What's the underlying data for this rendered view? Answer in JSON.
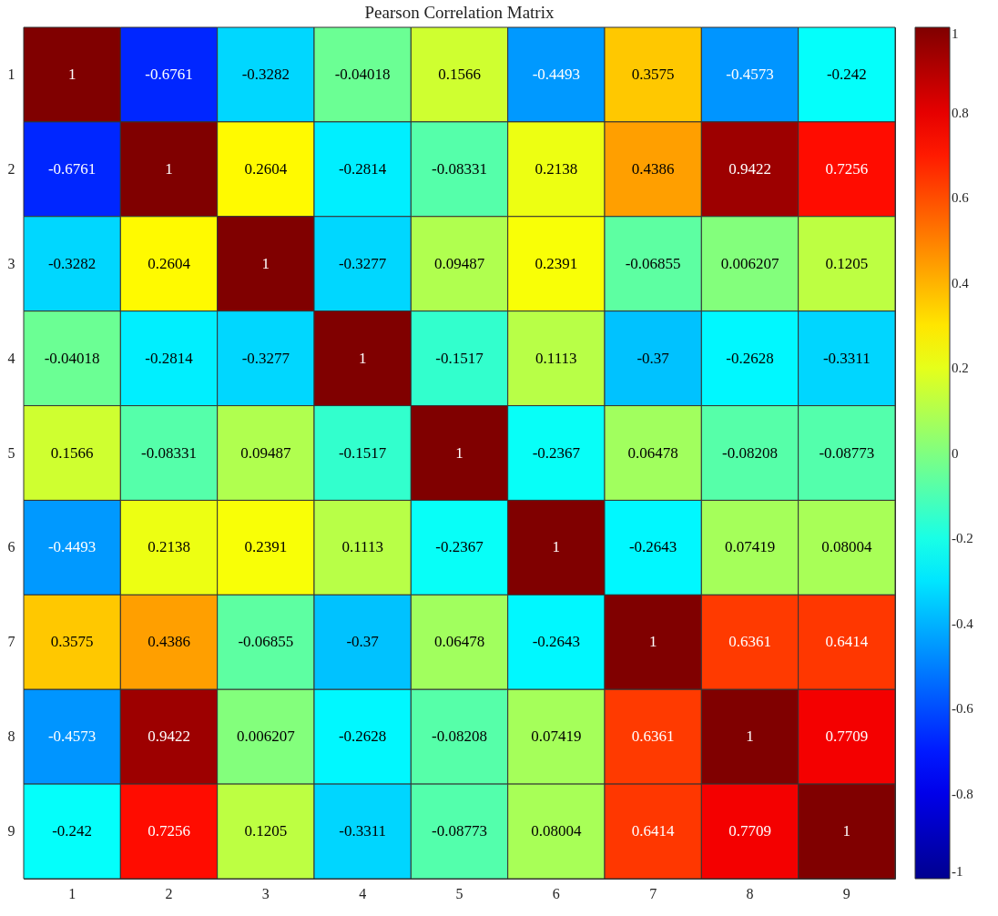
{
  "chart_data": {
    "type": "heatmap",
    "title": "Pearson Correlation Matrix",
    "categories": [
      "1",
      "2",
      "3",
      "4",
      "5",
      "6",
      "7",
      "8",
      "9"
    ],
    "y_categories": [
      "1",
      "2",
      "3",
      "4",
      "5",
      "6",
      "7",
      "8",
      "9"
    ],
    "cells": [
      [
        1,
        -0.6761,
        -0.3282,
        -0.04018,
        0.1566,
        -0.4493,
        0.3575,
        -0.4573,
        -0.242
      ],
      [
        -0.6761,
        1,
        0.2604,
        -0.2814,
        -0.08331,
        0.2138,
        0.4386,
        0.9422,
        0.7256
      ],
      [
        -0.3282,
        0.2604,
        1,
        -0.3277,
        0.09487,
        0.2391,
        -0.06855,
        0.006207,
        0.1205
      ],
      [
        -0.04018,
        -0.2814,
        -0.3277,
        1,
        -0.1517,
        0.1113,
        -0.37,
        -0.2628,
        -0.3311
      ],
      [
        0.1566,
        -0.08331,
        0.09487,
        -0.1517,
        1,
        -0.2367,
        0.06478,
        -0.08208,
        -0.08773
      ],
      [
        -0.4493,
        0.2138,
        0.2391,
        0.1113,
        -0.2367,
        1,
        -0.2643,
        0.07419,
        0.08004
      ],
      [
        0.3575,
        0.4386,
        -0.06855,
        -0.37,
        0.06478,
        -0.2643,
        1,
        0.6361,
        0.6414
      ],
      [
        -0.4573,
        0.9422,
        0.006207,
        -0.2628,
        -0.08208,
        0.07419,
        0.6361,
        1,
        0.7709
      ],
      [
        -0.242,
        0.7256,
        0.1205,
        -0.3311,
        -0.08773,
        0.08004,
        0.6414,
        0.7709,
        1
      ]
    ],
    "data_labels": true,
    "clim": [
      -1,
      1
    ],
    "cticks": [
      -1,
      -0.8,
      -0.6,
      -0.4,
      -0.2,
      0,
      0.2,
      0.4,
      0.6,
      0.8,
      1
    ]
  }
}
